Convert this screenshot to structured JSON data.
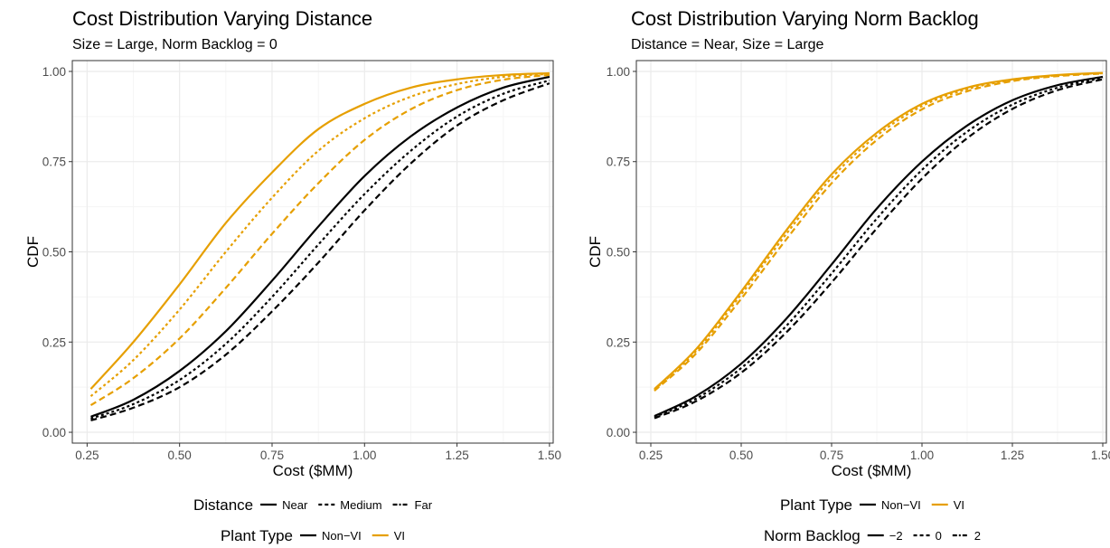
{
  "colors": {
    "non_vi": "#000000",
    "vi": "#E69F00",
    "grid_major": "#EBEBEB",
    "grid_minor": "#F5F5F5",
    "axis_text": "#4D4D4D",
    "panel_border": "#333333"
  },
  "chart_data": [
    {
      "type": "line",
      "title": "Cost Distribution Varying Distance",
      "subtitle": "Size = Large, Norm Backlog = 0",
      "xlabel": "Cost ($MM)",
      "ylabel": "CDF",
      "xlim": [
        0.25,
        1.5
      ],
      "ylim": [
        0,
        1
      ],
      "x_ticks": [
        0.25,
        0.5,
        0.75,
        1.0,
        1.25,
        1.5
      ],
      "x_tick_labels": [
        "0.25",
        "0.50",
        "0.75",
        "1.00",
        "1.25",
        "1.50"
      ],
      "y_ticks": [
        0,
        0.25,
        0.5,
        0.75,
        1.0
      ],
      "y_tick_labels": [
        "0.00",
        "0.25",
        "0.50",
        "0.75",
        "1.00"
      ],
      "grid": true,
      "x": [
        0.26,
        0.375,
        0.5,
        0.625,
        0.75,
        0.875,
        1.0,
        1.125,
        1.25,
        1.375,
        1.5
      ],
      "legend": [
        {
          "title": "Distance",
          "items": [
            {
              "label": "Near",
              "dash": "solid"
            },
            {
              "label": "Medium",
              "dash": "dashed"
            },
            {
              "label": "Far",
              "dash": "dotdash"
            }
          ]
        },
        {
          "title": "Plant Type",
          "items": [
            {
              "label": "Non−VI",
              "color": "#000000"
            },
            {
              "label": "VI",
              "color": "#E69F00"
            }
          ]
        }
      ],
      "series": [
        {
          "plant_type": "VI",
          "distance": "Near",
          "color": "#E69F00",
          "dash": "solid",
          "values": [
            0.12,
            0.25,
            0.41,
            0.58,
            0.72,
            0.84,
            0.91,
            0.955,
            0.978,
            0.99,
            0.995
          ]
        },
        {
          "plant_type": "VI",
          "distance": "Medium",
          "color": "#E69F00",
          "dash": "dotted",
          "values": [
            0.1,
            0.2,
            0.34,
            0.5,
            0.65,
            0.78,
            0.87,
            0.93,
            0.965,
            0.985,
            0.993
          ]
        },
        {
          "plant_type": "VI",
          "distance": "Far",
          "color": "#E69F00",
          "dash": "dashed",
          "values": [
            0.075,
            0.15,
            0.26,
            0.4,
            0.55,
            0.69,
            0.81,
            0.895,
            0.948,
            0.977,
            0.99
          ]
        },
        {
          "plant_type": "Non−VI",
          "distance": "Near",
          "color": "#000000",
          "dash": "solid",
          "values": [
            0.043,
            0.09,
            0.17,
            0.28,
            0.42,
            0.57,
            0.71,
            0.82,
            0.9,
            0.955,
            0.985
          ]
        },
        {
          "plant_type": "Non−VI",
          "distance": "Medium",
          "color": "#000000",
          "dash": "dotted",
          "values": [
            0.038,
            0.078,
            0.145,
            0.245,
            0.375,
            0.52,
            0.66,
            0.78,
            0.875,
            0.938,
            0.975
          ]
        },
        {
          "plant_type": "Non−VI",
          "distance": "Far",
          "color": "#000000",
          "dash": "dashed",
          "values": [
            0.033,
            0.068,
            0.125,
            0.215,
            0.335,
            0.47,
            0.615,
            0.745,
            0.85,
            0.92,
            0.967
          ]
        }
      ]
    },
    {
      "type": "line",
      "title": "Cost Distribution Varying Norm Backlog",
      "subtitle": "Distance = Near, Size = Large",
      "xlabel": "Cost ($MM)",
      "ylabel": "CDF",
      "xlim": [
        0.25,
        1.5
      ],
      "ylim": [
        0,
        1
      ],
      "x_ticks": [
        0.25,
        0.5,
        0.75,
        1.0,
        1.25,
        1.5
      ],
      "x_tick_labels": [
        "0.25",
        "0.50",
        "0.75",
        "1.00",
        "1.25",
        "1.50"
      ],
      "y_ticks": [
        0,
        0.25,
        0.5,
        0.75,
        1.0
      ],
      "y_tick_labels": [
        "0.00",
        "0.25",
        "0.50",
        "0.75",
        "1.00"
      ],
      "grid": true,
      "x": [
        0.26,
        0.375,
        0.5,
        0.625,
        0.75,
        0.875,
        1.0,
        1.125,
        1.25,
        1.375,
        1.5
      ],
      "legend": [
        {
          "title": "Plant Type",
          "items": [
            {
              "label": "Non−VI",
              "color": "#000000"
            },
            {
              "label": "VI",
              "color": "#E69F00"
            }
          ]
        },
        {
          "title": "Norm Backlog",
          "items": [
            {
              "label": "−2",
              "dash": "solid"
            },
            {
              "label": "0",
              "dash": "dashed"
            },
            {
              "label": "2",
              "dash": "dotdash"
            }
          ]
        }
      ],
      "series": [
        {
          "plant_type": "VI",
          "norm_backlog": "−2",
          "color": "#E69F00",
          "dash": "solid",
          "values": [
            0.12,
            0.23,
            0.39,
            0.56,
            0.715,
            0.83,
            0.91,
            0.955,
            0.978,
            0.99,
            0.996
          ]
        },
        {
          "plant_type": "VI",
          "norm_backlog": "0",
          "color": "#E69F00",
          "dash": "dotted",
          "values": [
            0.118,
            0.225,
            0.382,
            0.55,
            0.705,
            0.822,
            0.904,
            0.951,
            0.976,
            0.989,
            0.995
          ]
        },
        {
          "plant_type": "VI",
          "norm_backlog": "2",
          "color": "#E69F00",
          "dash": "dashed",
          "values": [
            0.115,
            0.218,
            0.37,
            0.535,
            0.69,
            0.81,
            0.895,
            0.945,
            0.973,
            0.987,
            0.994
          ]
        },
        {
          "plant_type": "Non−VI",
          "norm_backlog": "−2",
          "color": "#000000",
          "dash": "solid",
          "values": [
            0.045,
            0.1,
            0.19,
            0.315,
            0.465,
            0.62,
            0.75,
            0.85,
            0.92,
            0.962,
            0.985
          ]
        },
        {
          "plant_type": "Non−VI",
          "norm_backlog": "0",
          "color": "#000000",
          "dash": "dotted",
          "values": [
            0.042,
            0.093,
            0.178,
            0.295,
            0.44,
            0.592,
            0.727,
            0.833,
            0.908,
            0.955,
            0.982
          ]
        },
        {
          "plant_type": "Non−VI",
          "norm_backlog": "2",
          "color": "#000000",
          "dash": "dashed",
          "values": [
            0.039,
            0.086,
            0.165,
            0.277,
            0.415,
            0.565,
            0.703,
            0.815,
            0.896,
            0.948,
            0.978
          ]
        }
      ]
    }
  ]
}
